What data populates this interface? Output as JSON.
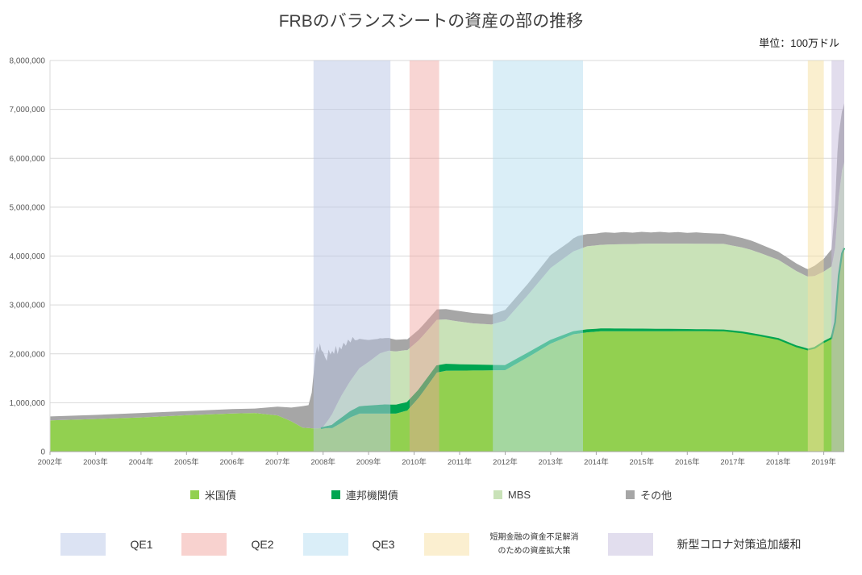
{
  "chart_data": {
    "type": "area",
    "stacked": true,
    "title": "FRBのバランスシートの資産の部の推移",
    "unit_note": "単位：100万ドル",
    "x_domain": [
      2002,
      2019.45
    ],
    "y_domain": [
      0,
      8000000
    ],
    "grid_on": true,
    "grid_color": "#d9d9d9",
    "axis_color": "#a6a6a6",
    "legend_position": "bottom",
    "y_ticks": [
      0,
      1000000,
      2000000,
      3000000,
      4000000,
      5000000,
      6000000,
      7000000,
      8000000
    ],
    "x_ticks": [
      {
        "x": 2002,
        "label": "2002年"
      },
      {
        "x": 2003,
        "label": "2003年"
      },
      {
        "x": 2004,
        "label": "2004年"
      },
      {
        "x": 2005,
        "label": "2005年"
      },
      {
        "x": 2006,
        "label": "2006年"
      },
      {
        "x": 2007,
        "label": "2007年"
      },
      {
        "x": 2008,
        "label": "2008年"
      },
      {
        "x": 2009,
        "label": "2009年"
      },
      {
        "x": 2010,
        "label": "2010年"
      },
      {
        "x": 2011,
        "label": "2011年"
      },
      {
        "x": 2012,
        "label": "2012年"
      },
      {
        "x": 2013,
        "label": "2013年"
      },
      {
        "x": 2014,
        "label": "2014年"
      },
      {
        "x": 2015,
        "label": "2015年"
      },
      {
        "x": 2016,
        "label": "2016年"
      },
      {
        "x": 2017,
        "label": "2017年"
      },
      {
        "x": 2018,
        "label": "2018年"
      },
      {
        "x": 2019,
        "label": "2019年"
      }
    ],
    "series": [
      {
        "id": "us-treasuries",
        "label": "米国債",
        "color": "#92d050",
        "fill_opacity": 1,
        "points": [
          [
            2002.0,
            640000
          ],
          [
            2003.0,
            666000
          ],
          [
            2004.0,
            700000
          ],
          [
            2005.0,
            744000
          ],
          [
            2006.0,
            778000
          ],
          [
            2006.5,
            790000
          ],
          [
            2007.0,
            740000
          ],
          [
            2007.3,
            620000
          ],
          [
            2007.55,
            490000
          ],
          [
            2007.75,
            476000
          ],
          [
            2008.2,
            480000
          ],
          [
            2008.35,
            560000
          ],
          [
            2008.6,
            700000
          ],
          [
            2008.8,
            777000
          ],
          [
            2009.6,
            777000
          ],
          [
            2009.85,
            840000
          ],
          [
            2010.1,
            1100000
          ],
          [
            2010.35,
            1420000
          ],
          [
            2010.5,
            1617000
          ],
          [
            2010.7,
            1655000
          ],
          [
            2011.7,
            1661000
          ],
          [
            2012.0,
            1666000
          ],
          [
            2012.5,
            1930000
          ],
          [
            2013.0,
            2208000
          ],
          [
            2013.5,
            2400000
          ],
          [
            2013.8,
            2440000
          ],
          [
            2014.1,
            2461000
          ],
          [
            2016.8,
            2465000
          ],
          [
            2017.2,
            2430000
          ],
          [
            2017.6,
            2370000
          ],
          [
            2018.0,
            2300000
          ],
          [
            2018.4,
            2150000
          ],
          [
            2018.65,
            2085000
          ],
          [
            2018.8,
            2120000
          ],
          [
            2019.0,
            2240000
          ],
          [
            2019.17,
            2320000
          ],
          [
            2019.25,
            2650000
          ],
          [
            2019.33,
            3600000
          ],
          [
            2019.4,
            4050000
          ],
          [
            2019.45,
            4160000
          ]
        ]
      },
      {
        "id": "agency-debt",
        "label": "連邦機関債",
        "color": "#00a550",
        "fill_opacity": 1,
        "stroke_width": 2.2,
        "points": [
          [
            2007.95,
            0
          ],
          [
            2008.1,
            30000
          ],
          [
            2008.3,
            70000
          ],
          [
            2008.6,
            110000
          ],
          [
            2008.9,
            140000
          ],
          [
            2009.2,
            160000
          ],
          [
            2009.35,
            169000
          ],
          [
            2009.6,
            165000
          ],
          [
            2010.0,
            150000
          ],
          [
            2010.5,
            130000
          ],
          [
            2011.0,
            112000
          ],
          [
            2011.5,
            100000
          ],
          [
            2012.0,
            85000
          ],
          [
            2012.5,
            75000
          ],
          [
            2013.0,
            60000
          ],
          [
            2013.5,
            45000
          ],
          [
            2014.0,
            40000
          ],
          [
            2015.0,
            35000
          ],
          [
            2016.0,
            25000
          ],
          [
            2017.0,
            12000
          ],
          [
            2018.0,
            4000
          ],
          [
            2019.0,
            2400
          ],
          [
            2019.45,
            2400
          ]
        ]
      },
      {
        "id": "mbs",
        "label": "MBS",
        "color": "#c9e2b8",
        "fill_opacity": 1,
        "points": [
          [
            2007.98,
            0
          ],
          [
            2008.1,
            120000
          ],
          [
            2008.25,
            300000
          ],
          [
            2008.4,
            470000
          ],
          [
            2008.6,
            640000
          ],
          [
            2008.8,
            800000
          ],
          [
            2009.0,
            910000
          ],
          [
            2009.25,
            1070000
          ],
          [
            2009.45,
            1120000
          ],
          [
            2009.8,
            1090000
          ],
          [
            2010.1,
            1030000
          ],
          [
            2010.5,
            950000
          ],
          [
            2010.9,
            900000
          ],
          [
            2011.3,
            860000
          ],
          [
            2011.7,
            845000
          ],
          [
            2012.0,
            927000
          ],
          [
            2012.5,
            1200000
          ],
          [
            2013.0,
            1490000
          ],
          [
            2013.5,
            1650000
          ],
          [
            2013.8,
            1718000
          ],
          [
            2014.3,
            1737000
          ],
          [
            2015.3,
            1760000
          ],
          [
            2016.8,
            1770000
          ],
          [
            2017.4,
            1720000
          ],
          [
            2018.0,
            1620000
          ],
          [
            2018.6,
            1500000
          ],
          [
            2019.0,
            1440000
          ],
          [
            2019.2,
            1470000
          ],
          [
            2019.33,
            1610000
          ],
          [
            2019.45,
            1760000
          ]
        ]
      },
      {
        "id": "other",
        "label": "その他",
        "color": "#a6a6a6",
        "fill_opacity": 1,
        "points": [
          [
            2002.0,
            80000
          ],
          [
            2003.0,
            85000
          ],
          [
            2004.0,
            90000
          ],
          [
            2005.0,
            86000
          ],
          [
            2006.0,
            92000
          ],
          [
            2006.5,
            90000
          ],
          [
            2007.0,
            180000
          ],
          [
            2007.3,
            280000
          ],
          [
            2007.55,
            440000
          ],
          [
            2007.68,
            470000
          ],
          [
            2007.75,
            730000
          ],
          [
            2007.79,
            1100000
          ],
          [
            2007.83,
            1500000
          ],
          [
            2007.87,
            1680000
          ],
          [
            2007.9,
            1550000
          ],
          [
            2007.93,
            1740000
          ],
          [
            2007.96,
            1600000
          ],
          [
            2008.0,
            1530000
          ],
          [
            2008.04,
            1380000
          ],
          [
            2008.08,
            1250000
          ],
          [
            2008.12,
            1430000
          ],
          [
            2008.16,
            1270000
          ],
          [
            2008.2,
            1290000
          ],
          [
            2008.24,
            1150000
          ],
          [
            2008.28,
            1240000
          ],
          [
            2008.32,
            1000000
          ],
          [
            2008.36,
            1080000
          ],
          [
            2008.4,
            950000
          ],
          [
            2008.45,
            1010000
          ],
          [
            2008.5,
            870000
          ],
          [
            2008.55,
            920000
          ],
          [
            2008.6,
            780000
          ],
          [
            2008.65,
            830000
          ],
          [
            2008.7,
            700000
          ],
          [
            2008.75,
            640000
          ],
          [
            2008.8,
            600000
          ],
          [
            2008.9,
            520000
          ],
          [
            2009.0,
            450000
          ],
          [
            2009.1,
            390000
          ],
          [
            2009.2,
            330000
          ],
          [
            2009.3,
            290000
          ],
          [
            2009.5,
            250000
          ],
          [
            2009.7,
            230000
          ],
          [
            2009.9,
            220000
          ],
          [
            2010.2,
            215000
          ],
          [
            2010.5,
            212000
          ],
          [
            2011.0,
            215000
          ],
          [
            2011.5,
            210000
          ],
          [
            2011.7,
            205000
          ],
          [
            2012.0,
            220000
          ],
          [
            2012.5,
            230000
          ],
          [
            2013.0,
            262000
          ],
          [
            2013.4,
            255000
          ],
          [
            2013.6,
            280000
          ],
          [
            2013.8,
            250000
          ],
          [
            2014.0,
            240000
          ],
          [
            2014.2,
            252000
          ],
          [
            2014.4,
            235000
          ],
          [
            2014.6,
            248000
          ],
          [
            2014.8,
            232000
          ],
          [
            2015.0,
            244000
          ],
          [
            2015.2,
            228000
          ],
          [
            2015.4,
            240000
          ],
          [
            2015.6,
            225000
          ],
          [
            2015.8,
            236000
          ],
          [
            2016.0,
            222000
          ],
          [
            2016.2,
            232000
          ],
          [
            2016.4,
            218000
          ],
          [
            2016.8,
            205000
          ],
          [
            2017.5,
            185000
          ],
          [
            2018.0,
            165000
          ],
          [
            2018.5,
            150000
          ],
          [
            2018.65,
            150000
          ],
          [
            2018.8,
            210000
          ],
          [
            2019.0,
            262000
          ],
          [
            2019.17,
            350000
          ],
          [
            2019.25,
            900000
          ],
          [
            2019.3,
            1300000
          ],
          [
            2019.37,
            1250000
          ],
          [
            2019.42,
            1190000
          ],
          [
            2019.45,
            1200000
          ]
        ]
      }
    ],
    "bands": [
      {
        "id": "qe1",
        "label": "QE1",
        "x0": 2007.79,
        "x1": 2009.48,
        "color": "#b9c6e6",
        "opacity": 0.5,
        "legend_color": "#dce3f3"
      },
      {
        "id": "qe2",
        "label": "QE2",
        "x0": 2009.9,
        "x1": 2010.55,
        "color": "#f0a29d",
        "opacity": 0.45,
        "legend_color": "#f8d2cf"
      },
      {
        "id": "qe3",
        "label": "QE3",
        "x0": 2011.73,
        "x1": 2013.71,
        "color": "#b5ddf0",
        "opacity": 0.5,
        "legend_color": "#daeef8"
      },
      {
        "id": "repo-expansion",
        "label": "短期金融の資金不足解消\nのための資産拡大策",
        "x0": 2018.65,
        "x1": 2019.0,
        "color": "#f6dfa0",
        "opacity": 0.5,
        "legend_color": "#fbefd0"
      },
      {
        "id": "covid-easing",
        "label": "新型コロナ対策追加緩和",
        "x0": 2019.17,
        "x1": 2019.45,
        "color": "#c5bcdc",
        "opacity": 0.5,
        "legend_color": "#e2deee"
      }
    ]
  }
}
